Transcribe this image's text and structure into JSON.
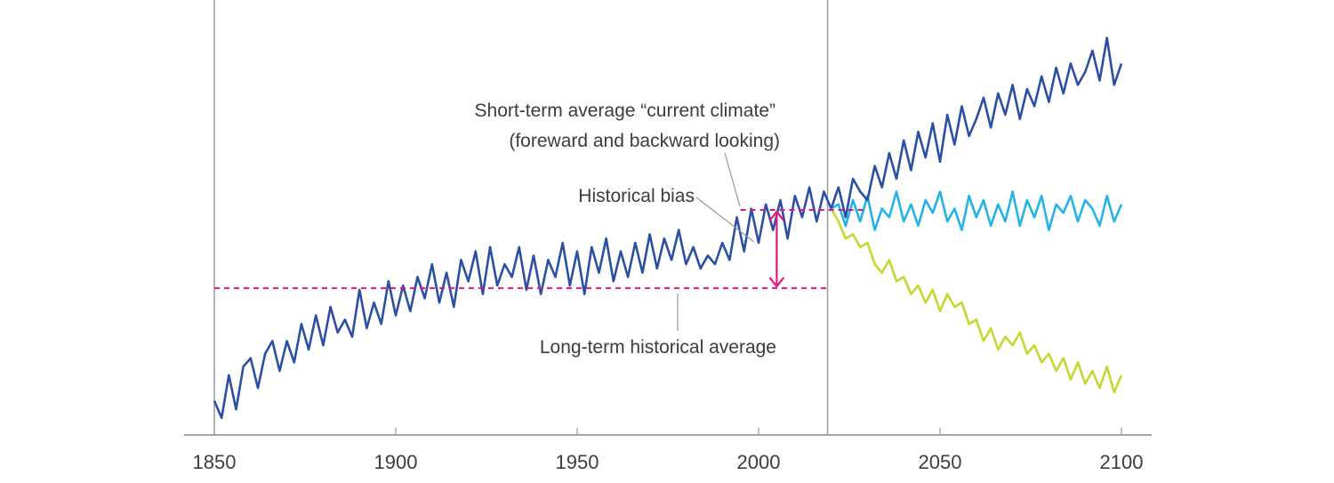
{
  "chart_data": {
    "type": "line",
    "title": "",
    "xlabel": "",
    "ylabel": "",
    "xlim": [
      1842,
      2108
    ],
    "ylim": [
      0,
      100
    ],
    "grid": false,
    "x_ticks": [
      "1850",
      "1900",
      "1950",
      "2000",
      "2050",
      "2100"
    ],
    "present_year_marker": 2019,
    "colors": {
      "historical": "#2b50a3",
      "high": "#2b50a3",
      "mid": "#23b3e8",
      "low": "#c4d830",
      "annotation": "#e2177f",
      "leader": "#9a9a9a"
    },
    "series": [
      {
        "id": "historical",
        "x_start": 1850,
        "x_step": 2,
        "values": [
          8,
          4,
          14,
          6,
          16,
          18,
          11,
          19,
          22,
          15,
          22,
          17,
          26,
          20,
          28,
          21,
          30,
          24,
          27,
          23,
          34,
          25,
          31,
          26,
          36,
          28,
          35,
          29,
          37,
          32,
          40,
          31,
          38,
          30,
          41,
          36,
          43,
          33,
          44,
          35,
          40,
          37,
          44,
          34,
          42,
          33,
          41,
          37,
          45,
          35,
          43,
          33,
          44,
          38,
          46,
          36,
          43,
          37,
          45,
          38,
          47,
          39,
          46,
          41,
          48,
          40,
          44,
          39,
          42,
          40,
          45,
          41,
          51,
          43,
          53,
          45,
          54,
          48,
          55,
          46,
          56,
          51,
          58,
          50,
          57,
          53
        ]
      },
      {
        "id": "high",
        "x_start": 2020,
        "x_step": 2,
        "values": [
          53,
          58,
          51,
          60,
          57,
          55,
          63,
          58,
          66,
          60,
          69,
          62,
          71,
          65,
          73,
          64,
          75,
          68,
          77,
          70,
          74,
          79,
          72,
          80,
          75,
          82,
          74,
          81,
          77,
          84,
          78,
          86,
          80,
          87,
          82,
          85,
          90,
          83,
          93,
          82,
          87
        ]
      },
      {
        "id": "mid",
        "x_start": 2020,
        "x_step": 2,
        "values": [
          53,
          54,
          49,
          55,
          50,
          56,
          48,
          53,
          51,
          57,
          50,
          54,
          49,
          55,
          52,
          57,
          50,
          53,
          48,
          56,
          51,
          55,
          49,
          54,
          50,
          57,
          49,
          55,
          51,
          56,
          48,
          54,
          52,
          56,
          50,
          55,
          53,
          49,
          56,
          50,
          54
        ]
      },
      {
        "id": "low",
        "x_start": 2020,
        "x_step": 2,
        "values": [
          53,
          50,
          46,
          47,
          44,
          45,
          40,
          38,
          41,
          36,
          37,
          33,
          35,
          31,
          34,
          29,
          33,
          30,
          31,
          26,
          27,
          22,
          25,
          20,
          23,
          21,
          24,
          19,
          21,
          17,
          19,
          15,
          18,
          13,
          17,
          12,
          15,
          11,
          16,
          10,
          14
        ]
      }
    ],
    "reference_lines": {
      "long_term_average": {
        "value": 34.4,
        "x_range": [
          1850,
          2019
        ]
      },
      "short_term_average": {
        "value": 52.7,
        "x_range": [
          1995,
          2030
        ]
      },
      "historical_bias_arrow_year": 2005
    },
    "annotations": {
      "short_term_line1": "Short-term average “current climate”",
      "short_term_line2": "(foreward and backward looking)",
      "historical_bias": "Historical bias",
      "long_term": "Long-term historical average"
    }
  }
}
